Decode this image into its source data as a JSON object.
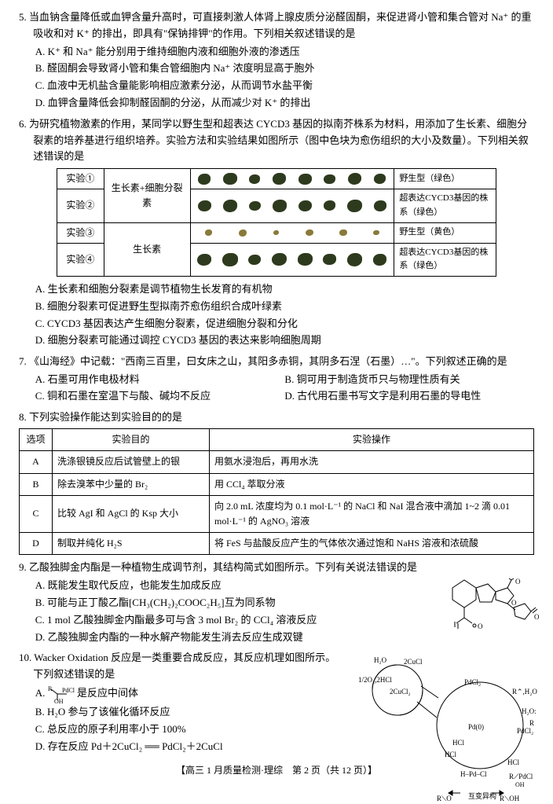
{
  "q5": {
    "num": "5",
    "stem": "当血钠含量降低或血钾含量升高时，可直接刺激人体肾上腺皮质分泌醛固酮，来促进肾小管和集合管对 Na⁺ 的重吸收和对 K⁺ 的排出，即具有\"保钠排钾\"的作用。下列相关叙述错误的是",
    "A": "A. K⁺ 和 Na⁺ 能分别用于维持细胞内液和细胞外液的渗透压",
    "B": "B. 醛固酮会导致肾小管和集合管细胞内 Na⁺ 浓度明显高于胞外",
    "C": "C. 血液中无机盐含量能影响相应激素分泌，从而调节水盐平衡",
    "D": "D. 血钾含量降低会抑制醛固酮的分泌，从而减少对 K⁺ 的排出"
  },
  "q6": {
    "num": "6",
    "stem": "为研究植物激素的作用，某同学以野生型和超表达 CYCD3 基因的拟南芥株系为材料，用添加了生长素、细胞分裂素的培养基进行组织培养。实验方法和实验结果如图所示（图中色块为愈伤组织的大小及数量）。下列相关叙述错误的是",
    "table": {
      "rows": [
        {
          "exp": "实验①",
          "mid": "生长素+细胞分裂素",
          "desc": "野生型（绿色）",
          "blot_color": "#2e3a1d",
          "blot_count": 8,
          "blot_size": 14
        },
        {
          "exp": "实验②",
          "mid": "",
          "desc": "超表达CYCD3基因的株系（绿色）",
          "blot_color": "#2e3a1d",
          "blot_count": 8,
          "blot_size": 15
        },
        {
          "exp": "实验③",
          "mid": "生长素",
          "desc": "野生型（黄色）",
          "blot_color": "#8a7a3a",
          "blot_count": 6,
          "blot_size": 7
        },
        {
          "exp": "实验④",
          "mid": "",
          "desc": "超表达CYCD3基因的株系（绿色）",
          "blot_color": "#2e3a1d",
          "blot_count": 8,
          "blot_size": 16
        }
      ]
    },
    "A": "A. 生长素和细胞分裂素是调节植物生长发育的有机物",
    "B": "B. 细胞分裂素可促进野生型拟南芥愈伤组织合成叶绿素",
    "C": "C. CYCD3 基因表达产生细胞分裂素，促进细胞分裂和分化",
    "D": "D. 细胞分裂素可能通过调控 CYCD3 基因的表达来影响细胞周期"
  },
  "q7": {
    "num": "7",
    "stem": "《山海经》中记载：\"西南三百里，曰女床之山，其阳多赤铜，其阴多石涅（石墨）…\"。下列叙述正确的是",
    "A": "A. 石墨可用作电极材料",
    "B": "B. 铜可用于制造货币只与物理性质有关",
    "C": "C. 铜和石墨在室温下与酸、碱均不反应",
    "D": "D. 古代用石墨书写文字是利用石墨的导电性"
  },
  "q8": {
    "num": "8",
    "stem": "下列实验操作能达到实验目的的是",
    "header": {
      "c1": "选项",
      "c2": "实验目的",
      "c3": "实验操作"
    },
    "rows": [
      {
        "opt": "A",
        "goal": "洗涤银镜反应后试管壁上的银",
        "op": "用氨水浸泡后，再用水洗"
      },
      {
        "opt": "B",
        "goal": "除去溴苯中少量的 Br₂",
        "op": "用 CCl₄ 萃取分液"
      },
      {
        "opt": "C",
        "goal": "比较 AgI 和 AgCl 的 Ksp 大小",
        "op": "向 2.0 mL 浓度均为 0.1 mol·L⁻¹ 的 NaCl 和 NaI 混合液中滴加 1~2 滴 0.01 mol·L⁻¹ 的 AgNO₃ 溶液"
      },
      {
        "opt": "D",
        "goal": "制取并纯化 H₂S",
        "op": "将 FeS 与盐酸反应产生的气体依次通过饱和 NaHS 溶液和浓硫酸"
      }
    ]
  },
  "q9": {
    "num": "9",
    "stem": "乙酸独脚金内酯是一种植物生成调节剂，其结构简式如图所示。下列有关说法错误的是",
    "A": "A. 既能发生取代反应，也能发生加成反应",
    "B": "B. 可能与正丁酸乙酯[CH₃(CH₂)₂COOC₂H₅]互为同系物",
    "C": "C. 1 mol 乙酸独脚金内酯最多可与含 3 mol Br₂ 的 CCl₄ 溶液反应",
    "D": "D. 乙酸独脚金内酯的一种水解产物能发生消去反应生成双键"
  },
  "q10": {
    "num": "10",
    "stem": "Wacker Oxidation 反应是一类重要合成反应，其反应机理如图所示。下列叙述错误的是",
    "A_pre": "A. ",
    "A_post": " 是反应中间体",
    "B": "B. H₂O 参与了该催化循环反应",
    "C": "C. 总反应的原子利用率小于 100%",
    "D": "D. 存在反应 Pd＋2CuCl₂ ══ PdCl₂＋2CuCl"
  },
  "footer": "【高三 1 月质量检测·理综　第 2 页（共 12 页）】",
  "colors": {
    "text": "#000000",
    "bg": "#ffffff",
    "border": "#000000",
    "blot_green": "#2e3a1d",
    "blot_yellow": "#8a7a3a"
  }
}
